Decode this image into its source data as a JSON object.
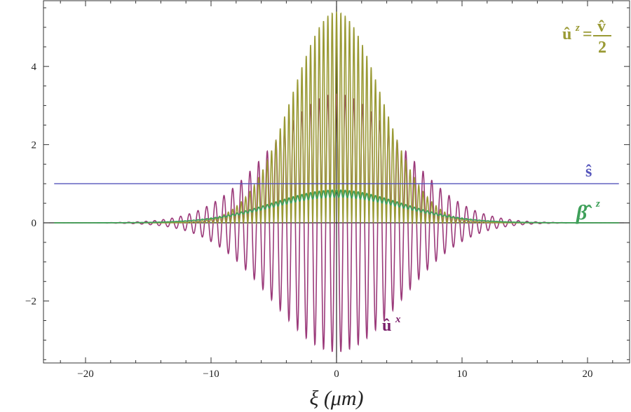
{
  "chart_data": {
    "type": "line",
    "title": "",
    "xlabel": "ξ (μm)",
    "ylabel": "",
    "xlim": [
      -23,
      23
    ],
    "ylim": [
      -3.55,
      5.7
    ],
    "x_ticks": [
      -20,
      -10,
      0,
      10,
      20
    ],
    "y_ticks": [
      -2,
      0,
      2,
      4
    ],
    "x_tick_labels": [
      "−20",
      "−10",
      "0",
      "10",
      "20"
    ],
    "y_tick_labels": [
      "−2",
      "0",
      "2",
      "4"
    ],
    "grid": false,
    "legend": "none (labels placed next to curves)",
    "series": [
      {
        "name": "û^z = v̂/2",
        "label_parts": {
          "base": "û",
          "sup": "z",
          "eq": "=",
          "num": "v̂",
          "den": "2"
        },
        "color": "#9a9a35",
        "envelope_peak": 5.4,
        "envelope_width_um": 5.0,
        "oscillation_period_um": 0.69,
        "min_value": 0,
        "note": "non-negative oscillation (carrier squared)"
      },
      {
        "name": "û^x",
        "label_parts": {
          "base": "û",
          "sup": "x"
        },
        "color": "#9b3a7a",
        "envelope_peak": 3.3,
        "envelope_width_um": 7.2,
        "oscillation_period_um": 0.69,
        "note": "symmetric oscillation about 0"
      },
      {
        "name": "β̂^z",
        "label_parts": {
          "base": "β̂",
          "sup": "z"
        },
        "color": "#3fa05a",
        "envelope_peak": 0.84,
        "envelope_width_um": 7.2,
        "oscillation_period_um": 0.69,
        "min_value": 0
      },
      {
        "name": "ŝ",
        "label_parts": {
          "base": "ŝ"
        },
        "color": "#5555bb",
        "constant_value": 1.0,
        "x_range": [
          -22.5,
          22.5
        ]
      }
    ]
  }
}
